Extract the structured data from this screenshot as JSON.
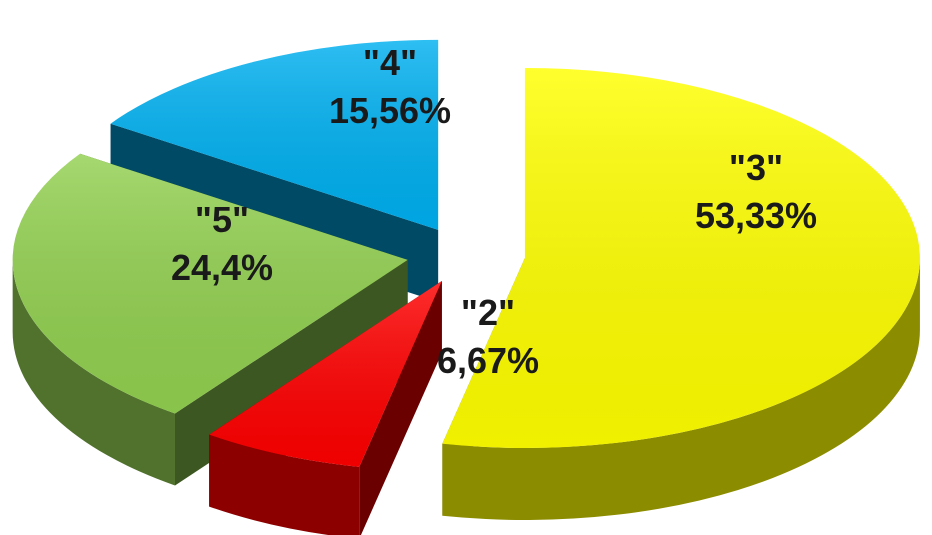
{
  "chart_data": {
    "type": "pie",
    "style": "3d-exploded",
    "title": "",
    "legend": "none",
    "slices": [
      {
        "category": "\"3\"",
        "percent_label": "53,33%",
        "value": 53.33,
        "color": "#ffff00"
      },
      {
        "category": "\"2\"",
        "percent_label": "6,67%",
        "value": 6.67,
        "color": "#ff0000"
      },
      {
        "category": "\"5\"",
        "percent_label": "24,4%",
        "value": 24.4,
        "color": "#92d050"
      },
      {
        "category": "\"4\"",
        "percent_label": "15,56%",
        "value": 15.56,
        "color": "#00b0f0"
      }
    ]
  }
}
